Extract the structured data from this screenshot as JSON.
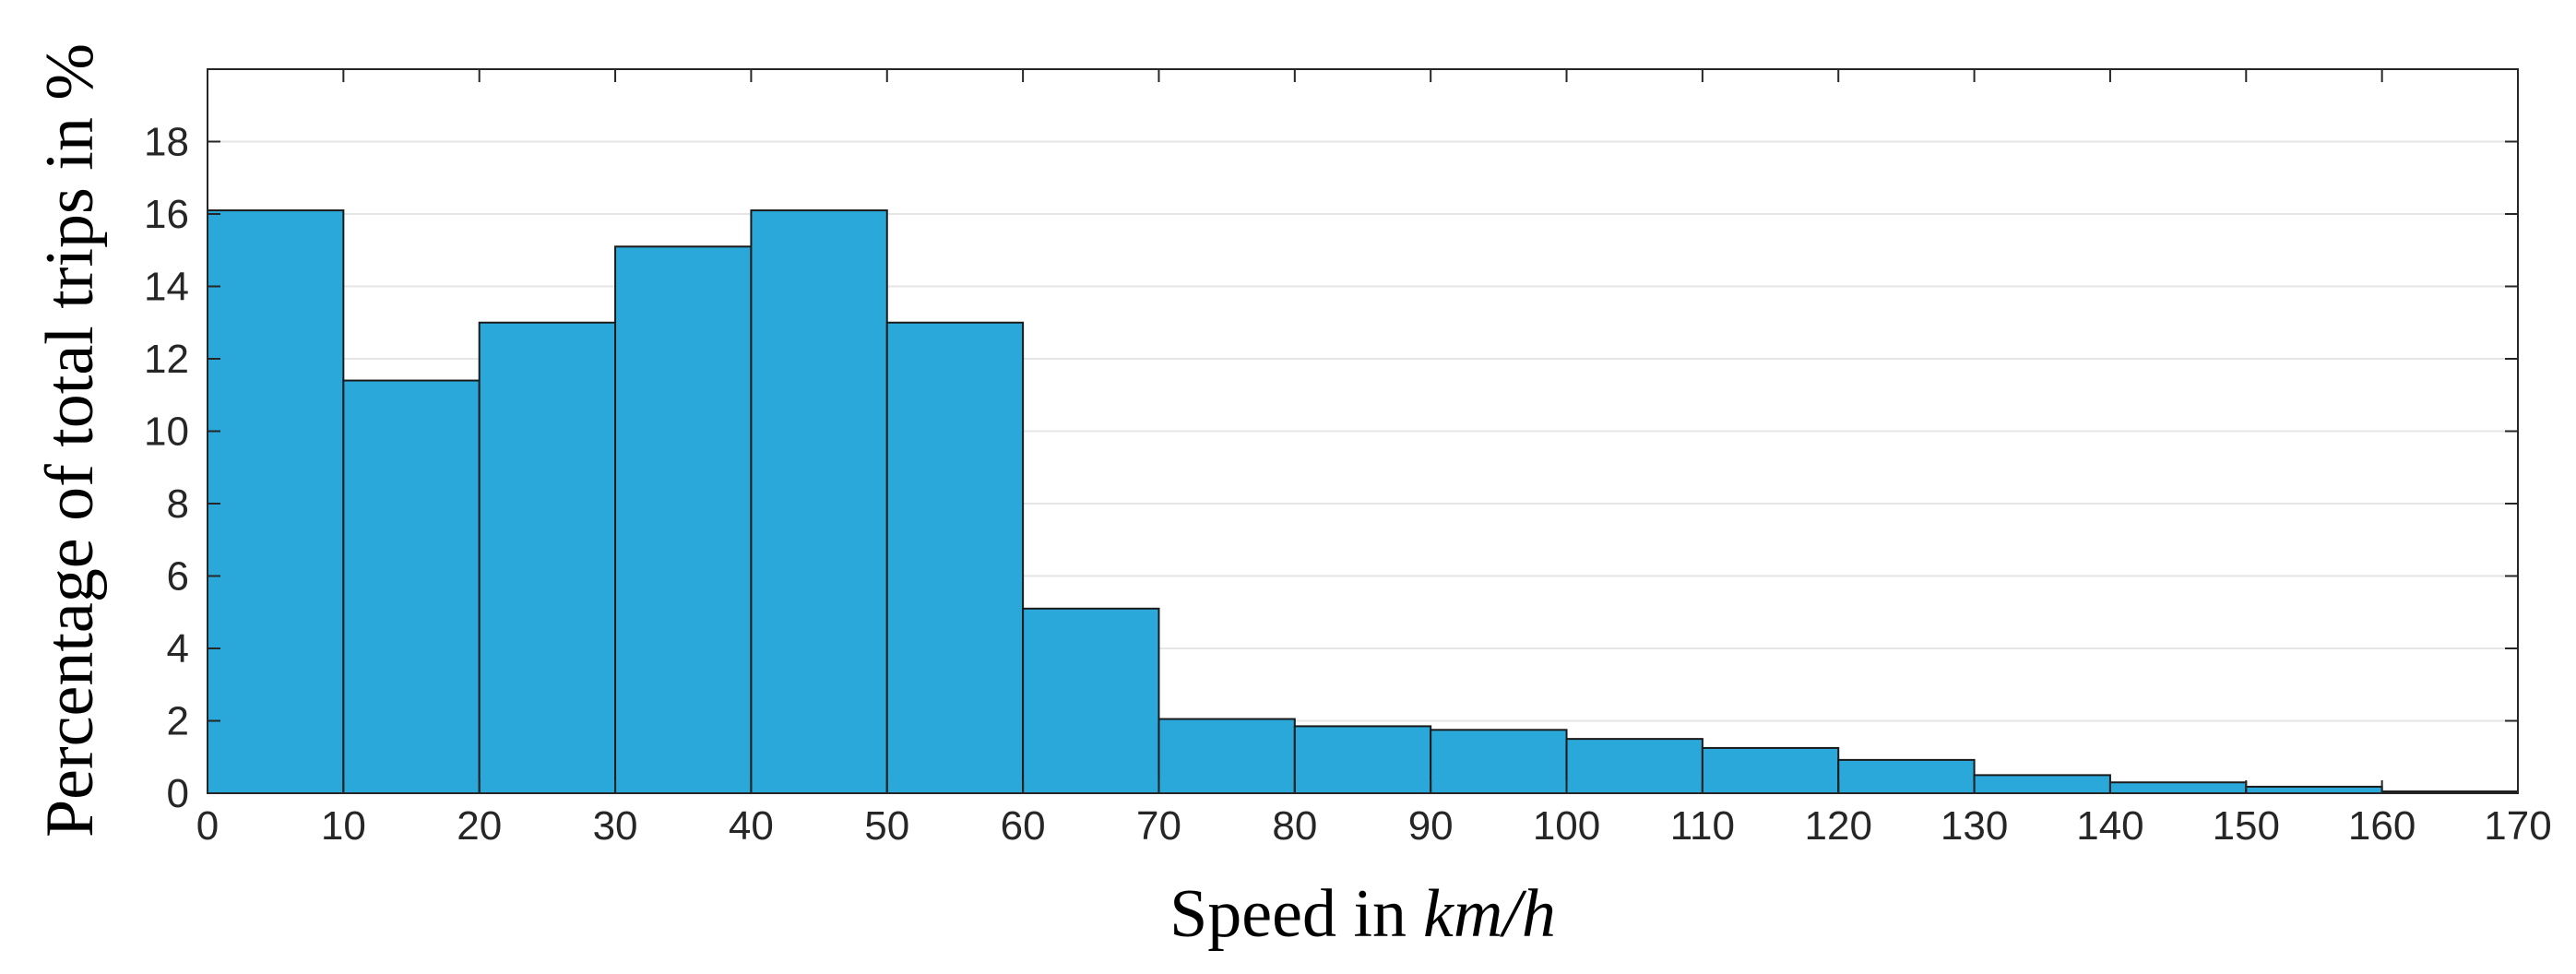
{
  "chart_data": {
    "type": "bar",
    "subtype": "histogram",
    "bin_edges": [
      0,
      10,
      20,
      30,
      40,
      50,
      60,
      70,
      80,
      90,
      100,
      110,
      120,
      130,
      140,
      150,
      160,
      170
    ],
    "values": [
      16.1,
      11.4,
      13.0,
      15.1,
      16.1,
      13.0,
      5.1,
      2.05,
      1.85,
      1.75,
      1.5,
      1.25,
      0.92,
      0.5,
      0.3,
      0.18,
      0.05
    ],
    "xlabel_text": "Speed in",
    "xlabel_unit": "km/h",
    "ylabel": "Percentage of total trips in %",
    "xlim": [
      0,
      170
    ],
    "ylim": [
      0,
      20
    ],
    "xticks": [
      "0",
      "10",
      "20",
      "30",
      "40",
      "50",
      "60",
      "70",
      "80",
      "90",
      "100",
      "110",
      "120",
      "130",
      "140",
      "150",
      "160",
      "170"
    ],
    "yticks": [
      "0",
      "2",
      "4",
      "6",
      "8",
      "10",
      "12",
      "14",
      "16",
      "18"
    ],
    "grid": "horizontal",
    "legend": "none",
    "bar_color": "#2aa8da",
    "bar_edge_color": "#1a1a1a",
    "grid_color": "#e6e6e6",
    "axis_color": "#262626"
  }
}
